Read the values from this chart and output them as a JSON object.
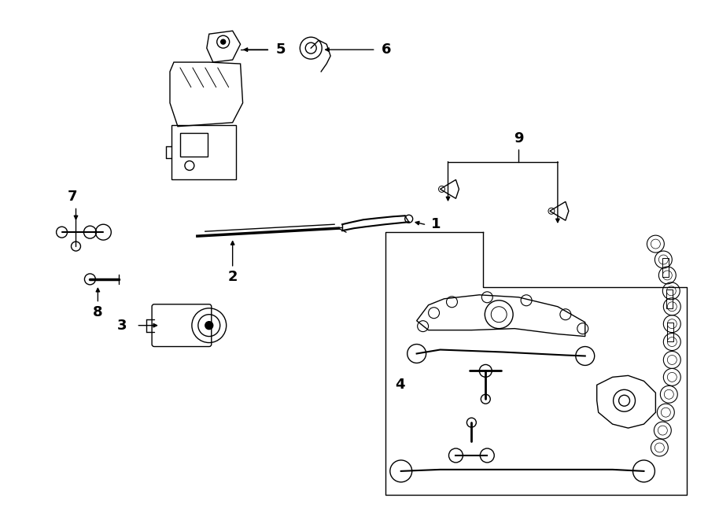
{
  "background_color": "#ffffff",
  "line_color": "#000000",
  "text_color": "#000000",
  "fig_width": 9.0,
  "fig_height": 6.61,
  "dpi": 100
}
